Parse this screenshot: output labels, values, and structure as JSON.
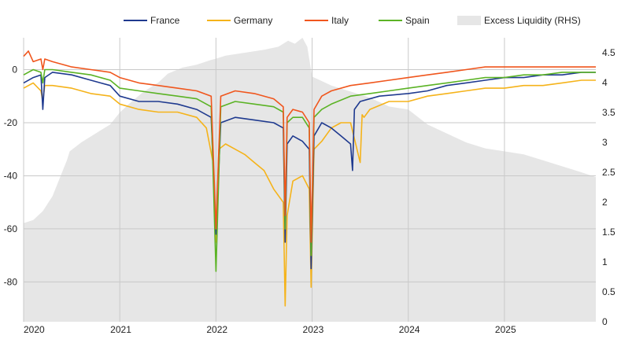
{
  "chart_data": {
    "type": "line",
    "title": "",
    "xlabel": "",
    "ylabel": "",
    "y_left_lim": [
      -95,
      12
    ],
    "y_left_ticks": [
      0,
      -20,
      -40,
      -60,
      -80
    ],
    "y_right_lim": [
      0,
      4.75
    ],
    "y_right_ticks": [
      0,
      0.5,
      1,
      1.5,
      2,
      2.5,
      3,
      3.5,
      4,
      4.5
    ],
    "y_right_tick_labels": [
      "0",
      "0.5",
      "1",
      "1.5",
      "2",
      "2.5",
      "3",
      "3.5",
      "4",
      "4.5"
    ],
    "x_lim": [
      2020.0,
      2025.95
    ],
    "x_ticks": [
      2020,
      2021,
      2022,
      2023,
      2024,
      2025
    ],
    "x_tick_labels": [
      "2020",
      "2021",
      "2022",
      "2023",
      "2024",
      "2025"
    ],
    "grid": true,
    "legend_position": "top-center",
    "legend": [
      {
        "name": "France",
        "color": "#1f3a8f",
        "kind": "line"
      },
      {
        "name": "Germany",
        "color": "#f5b31a",
        "kind": "line"
      },
      {
        "name": "Italy",
        "color": "#f0561d",
        "kind": "line"
      },
      {
        "name": "Spain",
        "color": "#5bb325",
        "kind": "line"
      },
      {
        "name": "Excess Liquidity (RHS)",
        "color": "#e6e6e6",
        "kind": "area"
      }
    ],
    "series": [
      {
        "name": "Excess Liquidity (RHS)",
        "color": "#e6e6e6",
        "type": "area",
        "axis": "right",
        "x": [
          2020.0,
          2020.1,
          2020.2,
          2020.3,
          2020.45,
          2020.48,
          2020.6,
          2020.75,
          2020.9,
          2021.0,
          2021.1,
          2021.25,
          2021.4,
          2021.5,
          2021.65,
          2021.8,
          2021.95,
          2022.0,
          2022.1,
          2022.3,
          2022.5,
          2022.65,
          2022.75,
          2022.82,
          2022.9,
          2022.95,
          2023.0,
          2023.2,
          2023.4,
          2023.6,
          2023.8,
          2024.0,
          2024.2,
          2024.4,
          2024.6,
          2024.8,
          2025.0,
          2025.2,
          2025.4,
          2025.6,
          2025.8,
          2025.95
        ],
        "values": [
          1.65,
          1.7,
          1.85,
          2.1,
          2.7,
          2.85,
          3.0,
          3.15,
          3.3,
          3.5,
          3.65,
          3.85,
          4.0,
          4.15,
          4.25,
          4.3,
          4.38,
          4.4,
          4.45,
          4.5,
          4.55,
          4.6,
          4.7,
          4.65,
          4.75,
          4.6,
          4.1,
          3.95,
          3.85,
          3.75,
          3.6,
          3.55,
          3.3,
          3.15,
          3.0,
          2.9,
          2.85,
          2.8,
          2.7,
          2.6,
          2.5,
          2.42
        ]
      },
      {
        "name": "Germany",
        "color": "#f5b31a",
        "type": "line",
        "axis": "left",
        "x": [
          2020.0,
          2020.1,
          2020.18,
          2020.2,
          2020.22,
          2020.3,
          2020.5,
          2020.7,
          2020.9,
          2021.0,
          2021.2,
          2021.4,
          2021.6,
          2021.8,
          2021.9,
          2021.97,
          2022.0,
          2022.03,
          2022.1,
          2022.2,
          2022.3,
          2022.4,
          2022.5,
          2022.6,
          2022.7,
          2022.72,
          2022.74,
          2022.8,
          2022.9,
          2022.97,
          2022.99,
          2023.02,
          2023.1,
          2023.2,
          2023.3,
          2023.4,
          2023.5,
          2023.52,
          2023.54,
          2023.6,
          2023.8,
          2024.0,
          2024.2,
          2024.4,
          2024.6,
          2024.8,
          2025.0,
          2025.2,
          2025.4,
          2025.6,
          2025.8,
          2025.95
        ],
        "values": [
          -7,
          -5,
          -8,
          -12,
          -6,
          -6,
          -7,
          -9,
          -10,
          -13,
          -15,
          -16,
          -16,
          -18,
          -22,
          -35,
          -65,
          -30,
          -28,
          -30,
          -32,
          -35,
          -38,
          -45,
          -50,
          -89,
          -55,
          -42,
          -40,
          -45,
          -82,
          -30,
          -27,
          -22,
          -20,
          -20,
          -35,
          -17,
          -18,
          -15,
          -12,
          -12,
          -10,
          -9,
          -8,
          -7,
          -7,
          -6,
          -6,
          -5,
          -4,
          -4
        ]
      },
      {
        "name": "France",
        "color": "#1f3a8f",
        "type": "line",
        "axis": "left",
        "x": [
          2020.0,
          2020.1,
          2020.18,
          2020.2,
          2020.22,
          2020.3,
          2020.5,
          2020.7,
          2020.9,
          2021.0,
          2021.2,
          2021.4,
          2021.6,
          2021.8,
          2021.95,
          2022.0,
          2022.05,
          2022.2,
          2022.4,
          2022.6,
          2022.7,
          2022.72,
          2022.74,
          2022.8,
          2022.9,
          2022.97,
          2022.99,
          2023.02,
          2023.1,
          2023.2,
          2023.3,
          2023.4,
          2023.42,
          2023.44,
          2023.5,
          2023.7,
          2024.0,
          2024.2,
          2024.4,
          2024.6,
          2024.8,
          2025.0,
          2025.2,
          2025.4,
          2025.6,
          2025.8,
          2025.95
        ],
        "values": [
          -5,
          -3,
          -2,
          -15,
          -3,
          -1,
          -2,
          -4,
          -6,
          -10,
          -12,
          -12,
          -13,
          -15,
          -18,
          -62,
          -20,
          -18,
          -19,
          -20,
          -22,
          -65,
          -28,
          -25,
          -27,
          -30,
          -75,
          -25,
          -20,
          -22,
          -25,
          -28,
          -38,
          -15,
          -12,
          -10,
          -9,
          -8,
          -6,
          -5,
          -4,
          -3,
          -3,
          -2,
          -2,
          -1,
          -1
        ]
      },
      {
        "name": "Spain",
        "color": "#5bb325",
        "type": "line",
        "axis": "left",
        "x": [
          2020.0,
          2020.1,
          2020.18,
          2020.2,
          2020.22,
          2020.3,
          2020.5,
          2020.7,
          2020.9,
          2021.0,
          2021.2,
          2021.4,
          2021.6,
          2021.8,
          2021.95,
          2022.0,
          2022.05,
          2022.2,
          2022.4,
          2022.6,
          2022.7,
          2022.72,
          2022.74,
          2022.8,
          2022.9,
          2022.97,
          2022.99,
          2023.02,
          2023.1,
          2023.2,
          2023.4,
          2023.6,
          2023.8,
          2024.0,
          2024.2,
          2024.4,
          2024.6,
          2024.8,
          2025.0,
          2025.2,
          2025.4,
          2025.6,
          2025.8,
          2025.95
        ],
        "values": [
          -2,
          0,
          -1,
          -5,
          0,
          0,
          -1,
          -2,
          -4,
          -7,
          -8,
          -9,
          -10,
          -11,
          -14,
          -76,
          -14,
          -12,
          -13,
          -14,
          -16,
          -60,
          -20,
          -18,
          -18,
          -22,
          -70,
          -18,
          -15,
          -13,
          -10,
          -9,
          -8,
          -7,
          -6,
          -5,
          -4,
          -3,
          -3,
          -2,
          -2,
          -1,
          -1,
          -1
        ]
      },
      {
        "name": "Italy",
        "color": "#f0561d",
        "type": "line",
        "axis": "left",
        "x": [
          2020.0,
          2020.05,
          2020.1,
          2020.18,
          2020.2,
          2020.22,
          2020.3,
          2020.5,
          2020.7,
          2020.9,
          2021.0,
          2021.2,
          2021.4,
          2021.6,
          2021.8,
          2021.95,
          2022.0,
          2022.05,
          2022.2,
          2022.4,
          2022.6,
          2022.7,
          2022.72,
          2022.74,
          2022.8,
          2022.9,
          2022.97,
          2022.99,
          2023.02,
          2023.1,
          2023.2,
          2023.4,
          2023.6,
          2023.8,
          2024.0,
          2024.2,
          2024.4,
          2024.6,
          2024.8,
          2025.0,
          2025.2,
          2025.4,
          2025.6,
          2025.8,
          2025.95
        ],
        "values": [
          5,
          7,
          3,
          4,
          0,
          4,
          3,
          1,
          0,
          -1,
          -3,
          -5,
          -6,
          -7,
          -8,
          -10,
          -60,
          -10,
          -8,
          -9,
          -11,
          -14,
          -55,
          -18,
          -15,
          -16,
          -20,
          -65,
          -15,
          -10,
          -8,
          -6,
          -5,
          -4,
          -3,
          -2,
          -1,
          0,
          1,
          1,
          1,
          1,
          1,
          1,
          1
        ]
      }
    ]
  }
}
